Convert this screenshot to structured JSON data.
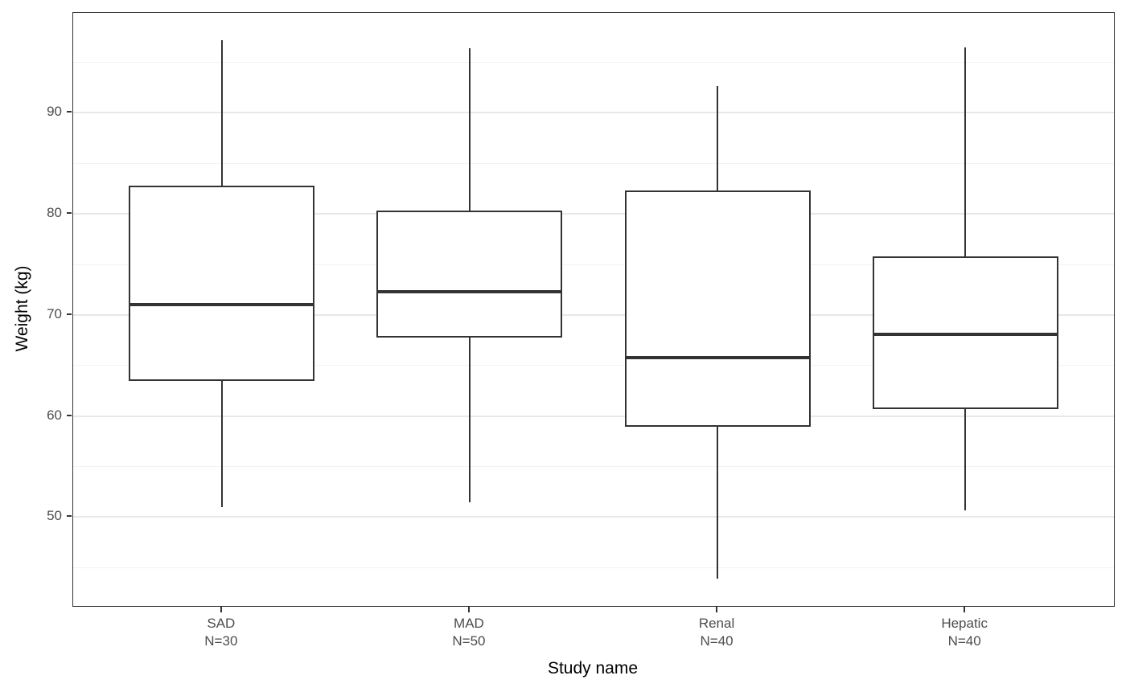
{
  "figure": {
    "x_axis_title": "Study name",
    "y_axis_title": "Weight (kg)"
  },
  "colors": {
    "background": "#ffffff",
    "panel_background": "#ffffff",
    "panel_border": "#333333",
    "gridline_major": "#e8e8e8",
    "gridline_minor": "#f2f2f2",
    "box_stroke": "#333333",
    "box_fill": "#ffffff",
    "tick_label": "#4d4d4d",
    "axis_title": "#000000"
  },
  "chart_data": {
    "type": "boxplot",
    "title": "",
    "xlabel": "Study name",
    "ylabel": "Weight (kg)",
    "ylim": [
      41.2,
      99.9
    ],
    "y_major_ticks": [
      50,
      60,
      70,
      80,
      90
    ],
    "y_minor_ticks": [
      45,
      55,
      65,
      75,
      85,
      95
    ],
    "grid": "major+minor horizontal",
    "legend": "none",
    "categories": [
      "SAD",
      "MAD",
      "Renal",
      "Hepatic"
    ],
    "category_sublabels": [
      "N=30",
      "N=50",
      "N=40",
      "N=40"
    ],
    "series": [
      {
        "name": "SAD",
        "sublabel": "N=30",
        "whisker_low": 51.0,
        "q1": 63.5,
        "median": 71.0,
        "q3": 82.8,
        "whisker_high": 97.2
      },
      {
        "name": "MAD",
        "sublabel": "N=50",
        "whisker_low": 51.5,
        "q1": 67.8,
        "median": 72.3,
        "q3": 80.3,
        "whisker_high": 96.4
      },
      {
        "name": "Renal",
        "sublabel": "N=40",
        "whisker_low": 43.9,
        "q1": 58.9,
        "median": 65.8,
        "q3": 82.3,
        "whisker_high": 92.7
      },
      {
        "name": "Hepatic",
        "sublabel": "N=40",
        "whisker_low": 50.7,
        "q1": 60.7,
        "median": 68.1,
        "q3": 75.8,
        "whisker_high": 96.5
      }
    ],
    "outliers": []
  }
}
